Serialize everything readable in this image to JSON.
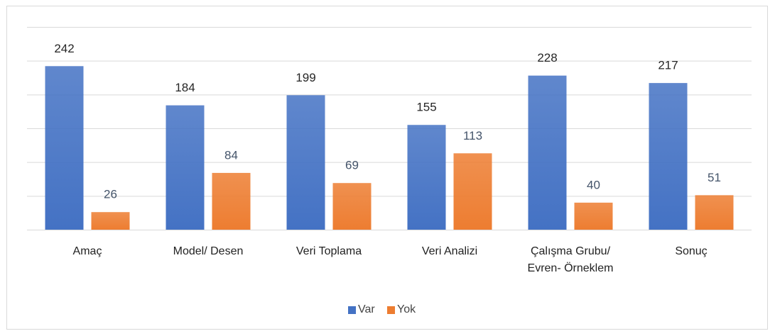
{
  "chart_data": {
    "type": "bar",
    "categories": [
      "Amaç",
      "Model/ Desen",
      "Veri Toplama",
      "Veri Analizi",
      "Çalışma Grubu/ Evren- Örneklem",
      "Sonuç"
    ],
    "series": [
      {
        "name": "Var",
        "color": "#4472c4",
        "values": [
          242,
          184,
          199,
          155,
          228,
          217
        ]
      },
      {
        "name": "Yok",
        "color": "#ed7d31",
        "values": [
          26,
          84,
          69,
          113,
          40,
          51
        ]
      }
    ],
    "ylim": [
      0,
      300
    ],
    "yticks": [
      0,
      50,
      100,
      150,
      200,
      250,
      300
    ],
    "grid": true
  }
}
